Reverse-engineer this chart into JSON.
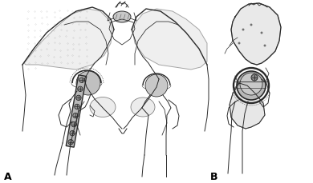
{
  "background_color": "#ffffff",
  "label_A": "A",
  "label_B": "B",
  "label_fontsize": 9,
  "label_fontweight": "bold",
  "fig_width": 3.9,
  "fig_height": 2.3,
  "dpi": 100,
  "image_b64": ""
}
